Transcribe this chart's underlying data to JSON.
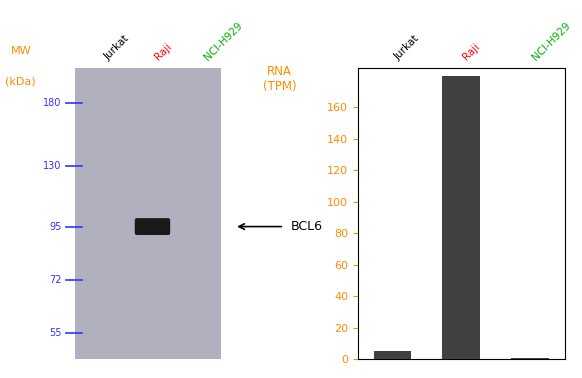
{
  "wb_panel": {
    "cell_lines": [
      "Jurkat",
      "Raji",
      "NCI-H929"
    ],
    "mw_labels": [
      180,
      130,
      95,
      72,
      55
    ],
    "mw_label_color": "#3333ff",
    "mw_tick_color": "#3333ff",
    "mw_header": "MW",
    "mw_unit": "(kDa)",
    "mw_header_color": "#ff8c00",
    "band_lane": 1,
    "band_mw": 95,
    "band_label": "BCL6",
    "gel_color": "#b0b0be",
    "band_color": "#1a1a1a",
    "cell_line_colors": [
      "#000000",
      "#ff0000",
      "#00aa00"
    ],
    "mw_min": 48,
    "mw_max": 215
  },
  "bar_panel": {
    "cell_lines": [
      "Jurkat",
      "Raji",
      "NCI-H929"
    ],
    "values": [
      5.0,
      180.0,
      1.0
    ],
    "ylabel_line1": "RNA",
    "ylabel_line2": "(TPM)",
    "ylabel_color": "#ff8c00",
    "yticks": [
      0,
      20,
      40,
      60,
      80,
      100,
      120,
      140,
      160
    ],
    "ymax": 185,
    "bar_color": "#404040",
    "bar_width": 0.55,
    "cell_line_label_colors": [
      "#000000",
      "#ff0000",
      "#00aa00"
    ],
    "tick_color": "#ff8c00"
  }
}
